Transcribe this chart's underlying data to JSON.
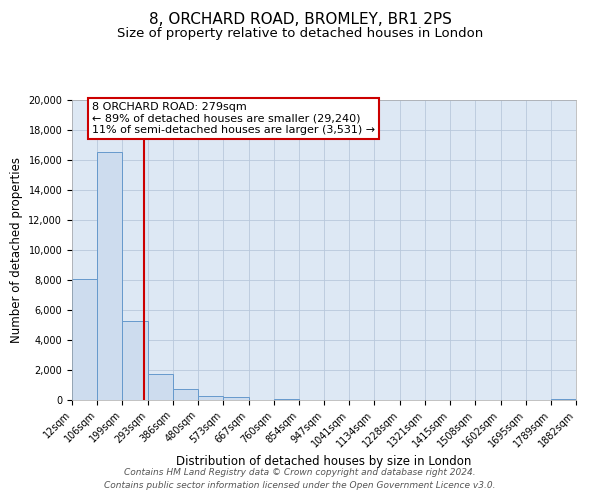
{
  "title": "8, ORCHARD ROAD, BROMLEY, BR1 2PS",
  "subtitle": "Size of property relative to detached houses in London",
  "xlabel": "Distribution of detached houses by size in London",
  "ylabel": "Number of detached properties",
  "bar_color": "#cddcee",
  "bar_edge_color": "#6699cc",
  "grid_color": "#b8c8dc",
  "background_color": "#dde8f4",
  "red_line_x": 279,
  "red_line_color": "#cc0000",
  "bin_edges": [
    12,
    106,
    199,
    293,
    386,
    480,
    573,
    667,
    760,
    854,
    947,
    1041,
    1134,
    1228,
    1321,
    1415,
    1508,
    1602,
    1695,
    1789,
    1882
  ],
  "bar_heights": [
    8100,
    16500,
    5300,
    1750,
    750,
    300,
    200,
    0,
    100,
    0,
    0,
    0,
    0,
    0,
    0,
    0,
    0,
    0,
    0,
    100
  ],
  "ylim": [
    0,
    20000
  ],
  "annotation_title": "8 ORCHARD ROAD: 279sqm",
  "annotation_line1": "← 89% of detached houses are smaller (29,240)",
  "annotation_line2": "11% of semi-detached houses are larger (3,531) →",
  "footer1": "Contains HM Land Registry data © Crown copyright and database right 2024.",
  "footer2": "Contains public sector information licensed under the Open Government Licence v3.0.",
  "title_fontsize": 11,
  "subtitle_fontsize": 9.5,
  "axis_label_fontsize": 8.5,
  "tick_fontsize": 7,
  "annotation_fontsize": 8,
  "footer_fontsize": 6.5
}
